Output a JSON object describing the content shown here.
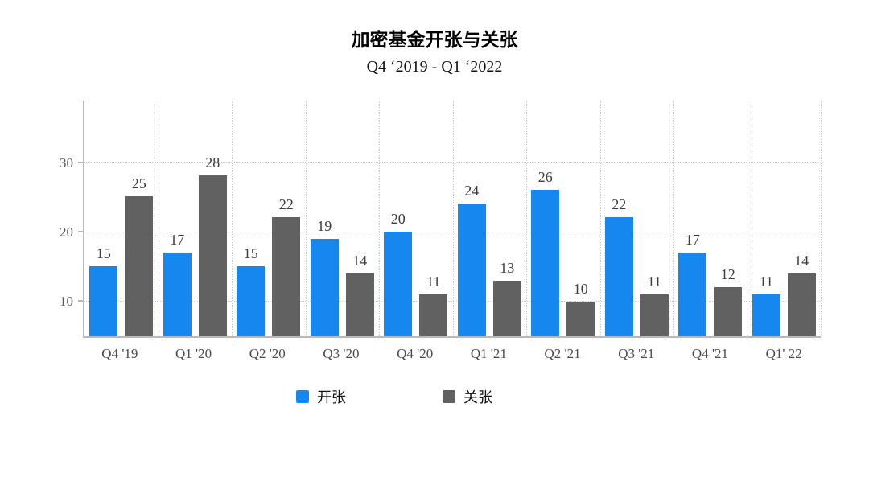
{
  "header": {
    "title": "加密基金开张与关张",
    "subtitle": "Q4 ‘2019 - Q1 ‘2022"
  },
  "chart_data": {
    "type": "bar",
    "title": "加密基金开张与关张",
    "subtitle": "Q4 ‘2019 - Q1 ‘2022",
    "categories": [
      "Q4 '19",
      "Q1 '20",
      "Q2 '20",
      "Q3 '20",
      "Q4 '20",
      "Q1 '21",
      "Q2 '21",
      "Q3 '21",
      "Q4 '21",
      "Q1' 22"
    ],
    "series": [
      {
        "name": "开张",
        "color": "#1787f0",
        "values": [
          15,
          17,
          15,
          19,
          20,
          24,
          26,
          22,
          17,
          11
        ]
      },
      {
        "name": "关张",
        "color": "#616161",
        "values": [
          25,
          28,
          22,
          14,
          11,
          13,
          10,
          11,
          12,
          14
        ]
      }
    ],
    "xlabel": "",
    "ylabel": "",
    "yticks": [
      10,
      20,
      30
    ],
    "ylim": [
      5,
      39
    ],
    "grid": true,
    "legend_position": "bottom"
  },
  "legend": {
    "items": [
      {
        "label": "开张",
        "color": "#1787f0"
      },
      {
        "label": "关张",
        "color": "#616161"
      }
    ]
  }
}
